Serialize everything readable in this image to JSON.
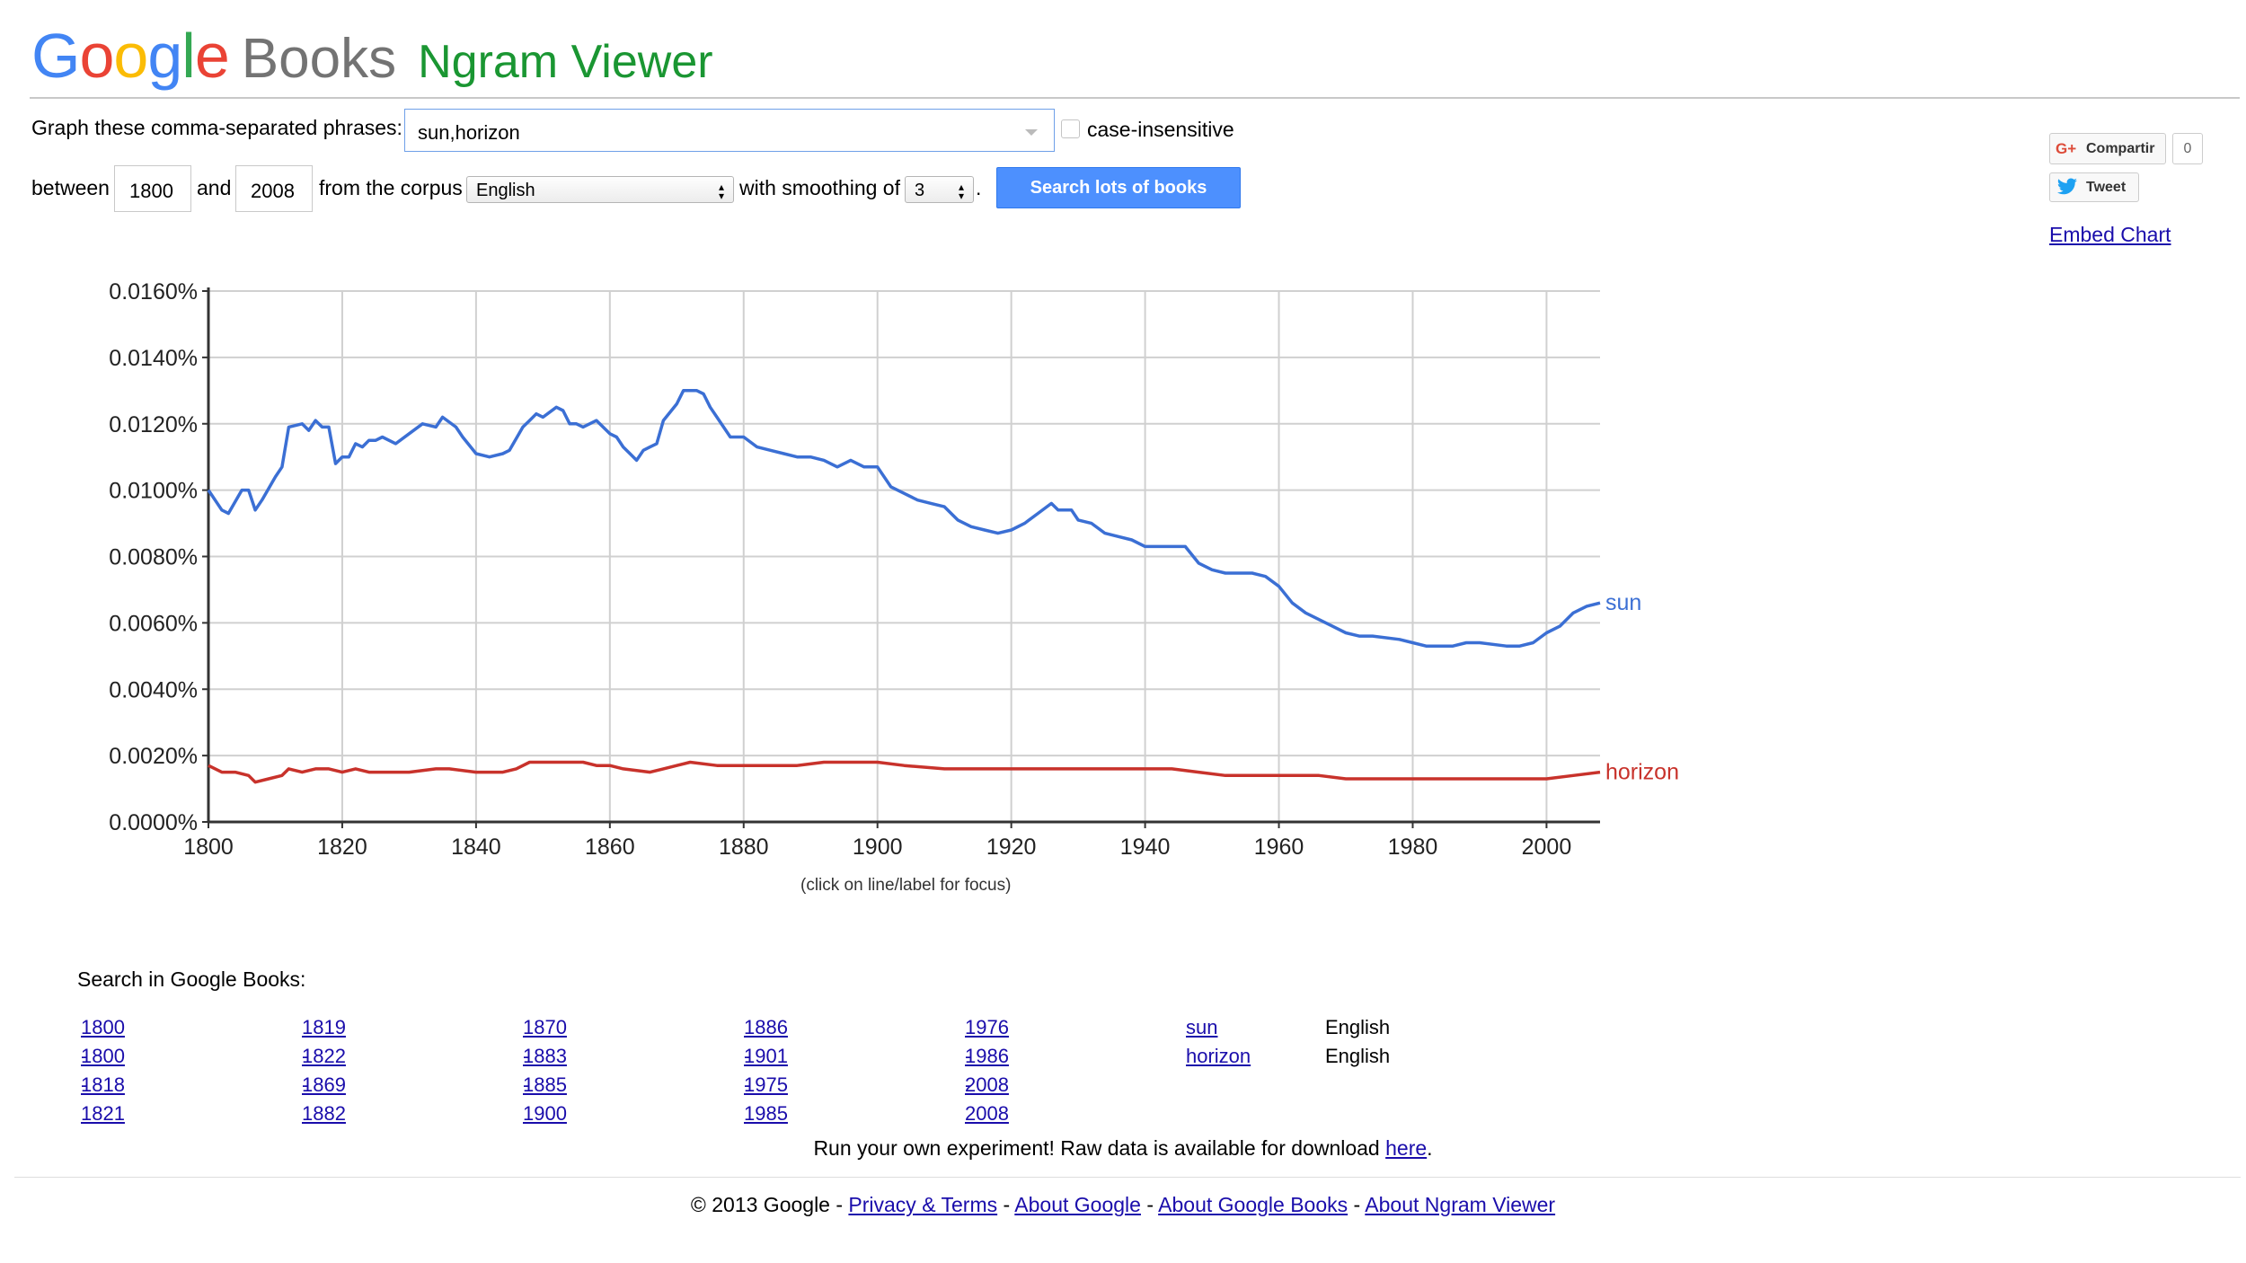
{
  "header": {
    "logo_google": "Google",
    "logo_books": "Books",
    "title": "Ngram Viewer"
  },
  "form": {
    "phrases_label": "Graph these comma-separated phrases:",
    "phrases_value": "sun,horizon",
    "case_label": "case-insensitive",
    "between_label": "between",
    "start_year": "1800",
    "and_label": "and",
    "end_year": "2008",
    "corpus_label": "from the corpus",
    "corpus_value": "English",
    "smoothing_label": "with smoothing of",
    "smoothing_value": "3",
    "smoothing_suffix": ".",
    "search_button": "Search lots of books"
  },
  "social": {
    "gplus_label": "Compartir",
    "gplus_count": "0",
    "tweet_label": "Tweet",
    "embed_label": "Embed Chart"
  },
  "colors": {
    "sun": "#3b6fd4",
    "horizon": "#c8322b",
    "button": "#4d90fe",
    "ngram_title": "#1a9632"
  },
  "chart_data": {
    "type": "line",
    "x_range": [
      1800,
      2008
    ],
    "ylim": [
      0,
      0.016
    ],
    "y_ticks": [
      "0.0000%",
      "0.0020%",
      "0.0040%",
      "0.0060%",
      "0.0080%",
      "0.0100%",
      "0.0120%",
      "0.0140%",
      "0.0160%"
    ],
    "x_ticks": [
      "1800",
      "1820",
      "1840",
      "1860",
      "1880",
      "1900",
      "1920",
      "1940",
      "1960",
      "1980",
      "2000"
    ],
    "grid": true,
    "note": "(click on line/label for focus)",
    "series": [
      {
        "name": "sun",
        "points": [
          [
            1800,
            0.01
          ],
          [
            1802,
            0.0094
          ],
          [
            1803,
            0.0093
          ],
          [
            1805,
            0.01
          ],
          [
            1806,
            0.01
          ],
          [
            1807,
            0.0094
          ],
          [
            1808,
            0.0097
          ],
          [
            1810,
            0.0104
          ],
          [
            1811,
            0.0107
          ],
          [
            1812,
            0.0119
          ],
          [
            1814,
            0.012
          ],
          [
            1815,
            0.0118
          ],
          [
            1816,
            0.0121
          ],
          [
            1817,
            0.0119
          ],
          [
            1818,
            0.0119
          ],
          [
            1819,
            0.0108
          ],
          [
            1820,
            0.011
          ],
          [
            1821,
            0.011
          ],
          [
            1822,
            0.0114
          ],
          [
            1823,
            0.0113
          ],
          [
            1824,
            0.0115
          ],
          [
            1825,
            0.0115
          ],
          [
            1826,
            0.0116
          ],
          [
            1828,
            0.0114
          ],
          [
            1830,
            0.0117
          ],
          [
            1832,
            0.012
          ],
          [
            1834,
            0.0119
          ],
          [
            1835,
            0.0122
          ],
          [
            1837,
            0.0119
          ],
          [
            1838,
            0.0116
          ],
          [
            1840,
            0.0111
          ],
          [
            1842,
            0.011
          ],
          [
            1844,
            0.0111
          ],
          [
            1845,
            0.0112
          ],
          [
            1847,
            0.0119
          ],
          [
            1848,
            0.0121
          ],
          [
            1849,
            0.0123
          ],
          [
            1850,
            0.0122
          ],
          [
            1852,
            0.0125
          ],
          [
            1853,
            0.0124
          ],
          [
            1854,
            0.012
          ],
          [
            1855,
            0.012
          ],
          [
            1856,
            0.0119
          ],
          [
            1858,
            0.0121
          ],
          [
            1860,
            0.0117
          ],
          [
            1861,
            0.0116
          ],
          [
            1862,
            0.0113
          ],
          [
            1863,
            0.0111
          ],
          [
            1864,
            0.0109
          ],
          [
            1865,
            0.0112
          ],
          [
            1866,
            0.0113
          ],
          [
            1867,
            0.0114
          ],
          [
            1868,
            0.0121
          ],
          [
            1870,
            0.0126
          ],
          [
            1871,
            0.013
          ],
          [
            1873,
            0.013
          ],
          [
            1874,
            0.0129
          ],
          [
            1875,
            0.0125
          ],
          [
            1876,
            0.0122
          ],
          [
            1878,
            0.0116
          ],
          [
            1880,
            0.0116
          ],
          [
            1882,
            0.0113
          ],
          [
            1884,
            0.0112
          ],
          [
            1886,
            0.0111
          ],
          [
            1888,
            0.011
          ],
          [
            1890,
            0.011
          ],
          [
            1892,
            0.0109
          ],
          [
            1894,
            0.0107
          ],
          [
            1896,
            0.0109
          ],
          [
            1898,
            0.0107
          ],
          [
            1900,
            0.0107
          ],
          [
            1902,
            0.0101
          ],
          [
            1904,
            0.0099
          ],
          [
            1906,
            0.0097
          ],
          [
            1908,
            0.0096
          ],
          [
            1910,
            0.0095
          ],
          [
            1912,
            0.0091
          ],
          [
            1914,
            0.0089
          ],
          [
            1916,
            0.0088
          ],
          [
            1918,
            0.0087
          ],
          [
            1920,
            0.0088
          ],
          [
            1922,
            0.009
          ],
          [
            1924,
            0.0093
          ],
          [
            1926,
            0.0096
          ],
          [
            1927,
            0.0094
          ],
          [
            1929,
            0.0094
          ],
          [
            1930,
            0.0091
          ],
          [
            1932,
            0.009
          ],
          [
            1934,
            0.0087
          ],
          [
            1936,
            0.0086
          ],
          [
            1938,
            0.0085
          ],
          [
            1940,
            0.0083
          ],
          [
            1942,
            0.0083
          ],
          [
            1944,
            0.0083
          ],
          [
            1946,
            0.0083
          ],
          [
            1948,
            0.0078
          ],
          [
            1950,
            0.0076
          ],
          [
            1952,
            0.0075
          ],
          [
            1954,
            0.0075
          ],
          [
            1956,
            0.0075
          ],
          [
            1958,
            0.0074
          ],
          [
            1960,
            0.0071
          ],
          [
            1962,
            0.0066
          ],
          [
            1964,
            0.0063
          ],
          [
            1966,
            0.0061
          ],
          [
            1968,
            0.0059
          ],
          [
            1970,
            0.0057
          ],
          [
            1972,
            0.0056
          ],
          [
            1974,
            0.0056
          ],
          [
            1978,
            0.0055
          ],
          [
            1980,
            0.0054
          ],
          [
            1982,
            0.0053
          ],
          [
            1984,
            0.0053
          ],
          [
            1986,
            0.0053
          ],
          [
            1988,
            0.0054
          ],
          [
            1990,
            0.0054
          ],
          [
            1994,
            0.0053
          ],
          [
            1996,
            0.0053
          ],
          [
            1998,
            0.0054
          ],
          [
            2000,
            0.0057
          ],
          [
            2002,
            0.0059
          ],
          [
            2004,
            0.0063
          ],
          [
            2006,
            0.0065
          ],
          [
            2008,
            0.0066
          ]
        ]
      },
      {
        "name": "horizon",
        "points": [
          [
            1800,
            0.0017
          ],
          [
            1802,
            0.0015
          ],
          [
            1804,
            0.0015
          ],
          [
            1806,
            0.0014
          ],
          [
            1807,
            0.0012
          ],
          [
            1809,
            0.0013
          ],
          [
            1811,
            0.0014
          ],
          [
            1812,
            0.0016
          ],
          [
            1814,
            0.0015
          ],
          [
            1816,
            0.0016
          ],
          [
            1818,
            0.0016
          ],
          [
            1820,
            0.0015
          ],
          [
            1822,
            0.0016
          ],
          [
            1824,
            0.0015
          ],
          [
            1826,
            0.0015
          ],
          [
            1828,
            0.0015
          ],
          [
            1830,
            0.0015
          ],
          [
            1834,
            0.0016
          ],
          [
            1836,
            0.0016
          ],
          [
            1840,
            0.0015
          ],
          [
            1844,
            0.0015
          ],
          [
            1846,
            0.0016
          ],
          [
            1848,
            0.0018
          ],
          [
            1850,
            0.0018
          ],
          [
            1854,
            0.0018
          ],
          [
            1856,
            0.0018
          ],
          [
            1858,
            0.0017
          ],
          [
            1860,
            0.0017
          ],
          [
            1862,
            0.0016
          ],
          [
            1866,
            0.0015
          ],
          [
            1868,
            0.0016
          ],
          [
            1870,
            0.0017
          ],
          [
            1872,
            0.0018
          ],
          [
            1876,
            0.0017
          ],
          [
            1880,
            0.0017
          ],
          [
            1884,
            0.0017
          ],
          [
            1888,
            0.0017
          ],
          [
            1892,
            0.0018
          ],
          [
            1896,
            0.0018
          ],
          [
            1900,
            0.0018
          ],
          [
            1904,
            0.0017
          ],
          [
            1910,
            0.0016
          ],
          [
            1916,
            0.0016
          ],
          [
            1920,
            0.0016
          ],
          [
            1926,
            0.0016
          ],
          [
            1930,
            0.0016
          ],
          [
            1936,
            0.0016
          ],
          [
            1940,
            0.0016
          ],
          [
            1944,
            0.0016
          ],
          [
            1948,
            0.0015
          ],
          [
            1952,
            0.0014
          ],
          [
            1956,
            0.0014
          ],
          [
            1960,
            0.0014
          ],
          [
            1966,
            0.0014
          ],
          [
            1970,
            0.0013
          ],
          [
            1974,
            0.0013
          ],
          [
            1980,
            0.0013
          ],
          [
            1986,
            0.0013
          ],
          [
            1990,
            0.0013
          ],
          [
            1996,
            0.0013
          ],
          [
            2000,
            0.0013
          ],
          [
            2004,
            0.0014
          ],
          [
            2008,
            0.0015
          ]
        ]
      }
    ]
  },
  "books": {
    "heading": "Search in Google Books:",
    "rows": [
      {
        "ranges": [
          "1800 - 1818",
          "1819 - 1869",
          "1870 - 1885",
          "1886 - 1975",
          "1976 - 2008"
        ],
        "term": "sun",
        "language": "English"
      },
      {
        "ranges": [
          "1800 - 1821",
          "1822 - 1882",
          "1883 - 1900",
          "1901 - 1985",
          "1986 - 2008"
        ],
        "term": "horizon",
        "language": "English"
      }
    ]
  },
  "footer": {
    "raw_text": "Run your own experiment! Raw data is available for download ",
    "raw_link": "here",
    "raw_end": ".",
    "copyright": "© 2013 Google - ",
    "links": [
      "Privacy & Terms",
      "About Google",
      "About Google Books",
      "About Ngram Viewer"
    ],
    "sep": " - "
  }
}
